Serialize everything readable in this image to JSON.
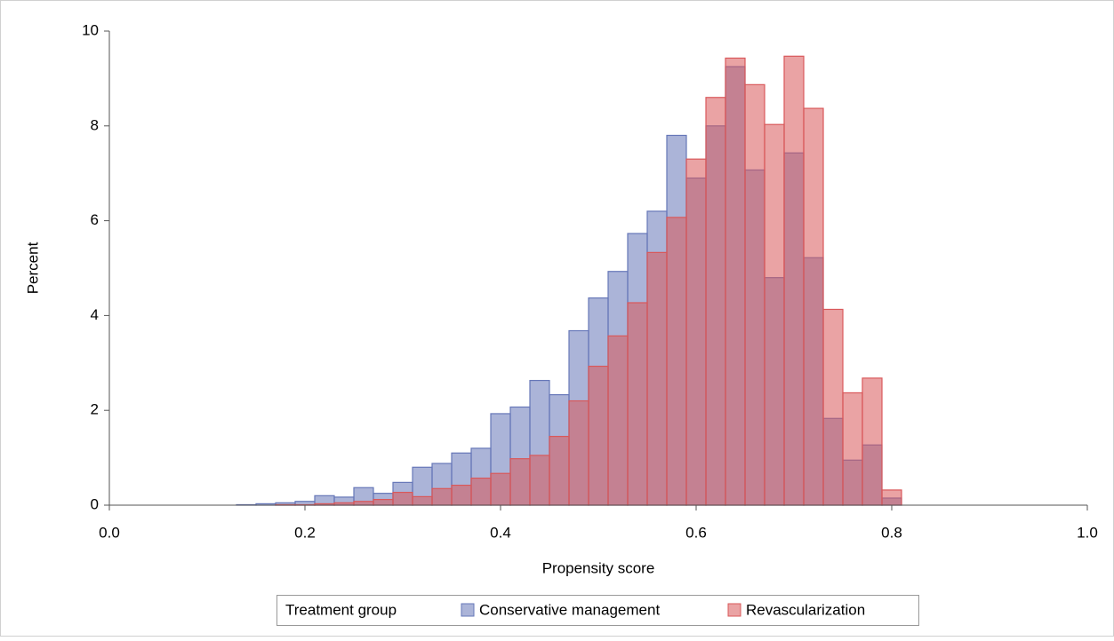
{
  "chart_data": {
    "type": "histogram",
    "x_label": "Propensity score",
    "y_label": "Percent",
    "legend_title": "Treatment group",
    "legend": "bottom",
    "bins": [
      0.13,
      0.15,
      0.17,
      0.19,
      0.21,
      0.23,
      0.25,
      0.27,
      0.29,
      0.31,
      0.33,
      0.35,
      0.37,
      0.39,
      0.41,
      0.43,
      0.45,
      0.47,
      0.49,
      0.51,
      0.53,
      0.55,
      0.57,
      0.59,
      0.61,
      0.63,
      0.65,
      0.67,
      0.69,
      0.71,
      0.73,
      0.75,
      0.77,
      0.79,
      0.81
    ],
    "series": [
      {
        "name": "Conservative management",
        "color": "#6677b8",
        "values": [
          0.01,
          0.03,
          0.05,
          0.08,
          0.2,
          0.17,
          0.37,
          0.25,
          0.48,
          0.8,
          0.88,
          1.1,
          1.2,
          1.93,
          2.07,
          2.63,
          2.33,
          3.68,
          4.37,
          4.93,
          5.73,
          6.2,
          7.8,
          6.9,
          8.0,
          9.25,
          7.07,
          4.8,
          7.43,
          5.22,
          1.83,
          0.95,
          1.27,
          0.15
        ]
      },
      {
        "name": "Revascularization",
        "color": "#d9585a",
        "values": [
          0,
          0,
          0.01,
          0.01,
          0.03,
          0.05,
          0.08,
          0.12,
          0.27,
          0.18,
          0.35,
          0.42,
          0.57,
          0.67,
          0.98,
          1.05,
          1.45,
          2.2,
          2.93,
          3.57,
          4.27,
          5.33,
          6.07,
          7.3,
          8.6,
          9.43,
          8.87,
          8.03,
          9.47,
          8.37,
          4.13,
          2.37,
          2.68,
          0.32
        ]
      }
    ],
    "xlim": [
      0,
      1
    ],
    "xticks": [
      {
        "value": 0,
        "label": "0.0"
      },
      0.2,
      0.4,
      0.6,
      0.8,
      {
        "value": 1,
        "label": "1.0"
      }
    ],
    "ylim": [
      0,
      10
    ],
    "yticks": [
      0,
      2,
      4,
      6,
      8,
      10
    ]
  }
}
